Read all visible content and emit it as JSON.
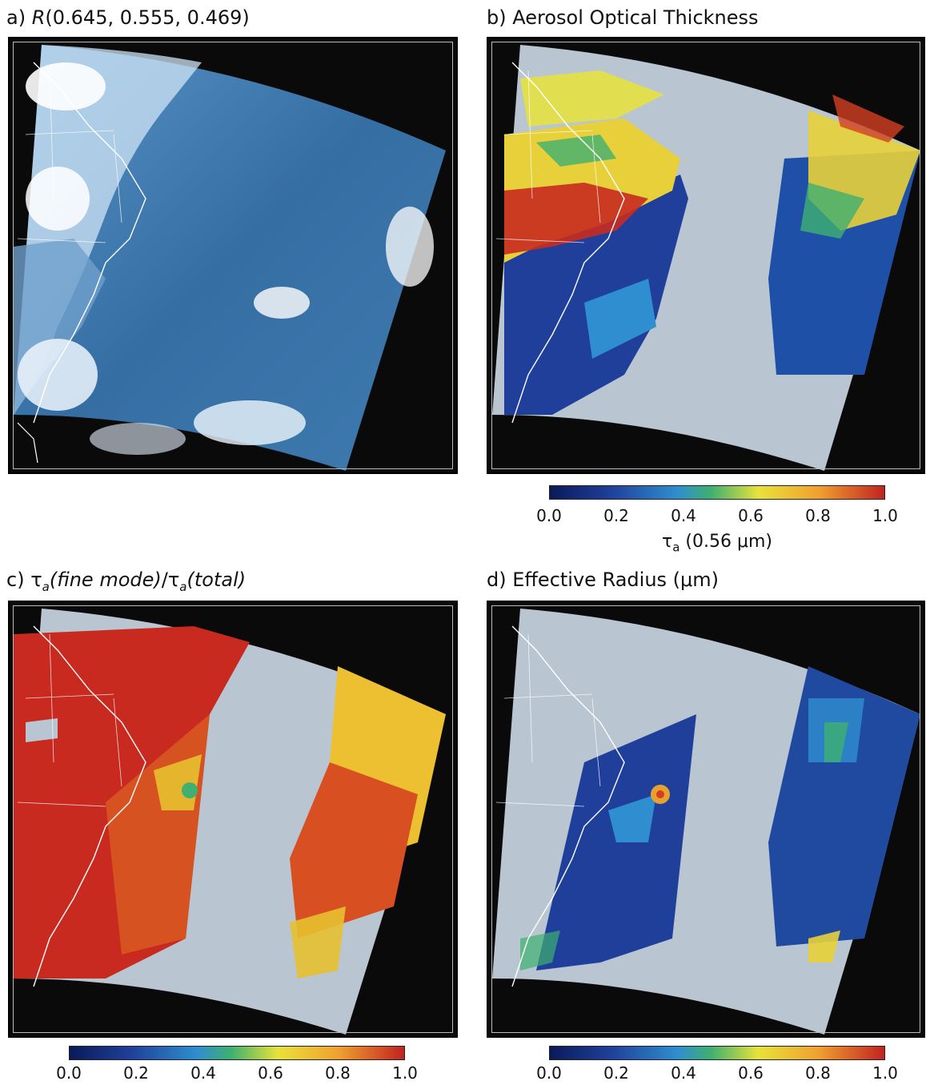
{
  "panels": [
    {
      "id": "a",
      "title_prefix": "a) ",
      "title_italic": "R",
      "title_rest": "(0.645, 0.555, 0.469)"
    },
    {
      "id": "b",
      "title": "b) Aerosol Optical Thickness"
    },
    {
      "id": "c",
      "title_prefix": "c) ",
      "title_tau": "τ",
      "title_sub1": "a",
      "title_italic1": "(fine mode)",
      "title_slash": "/",
      "title_tau2": "τ",
      "title_sub2": "a",
      "title_italic2": "(total)"
    },
    {
      "id": "d",
      "title": "d) Effective Radius (μm)"
    }
  ],
  "colorbars": {
    "ticks": [
      "0.0",
      "0.2",
      "0.4",
      "0.6",
      "0.8",
      "1.0"
    ],
    "b_label_tau": "τ",
    "b_label_sub": "a",
    "b_label_rest": " (0.56 μm)"
  },
  "colors": {
    "ocean_blue": "#3f79ad",
    "gray_mask": "#b9c6d1",
    "background": "#0a0a0a",
    "jet": [
      "#0a1a5a",
      "#1f3f9a",
      "#2f8ed0",
      "#3fb070",
      "#e8e23a",
      "#f0a030",
      "#c02020"
    ]
  }
}
